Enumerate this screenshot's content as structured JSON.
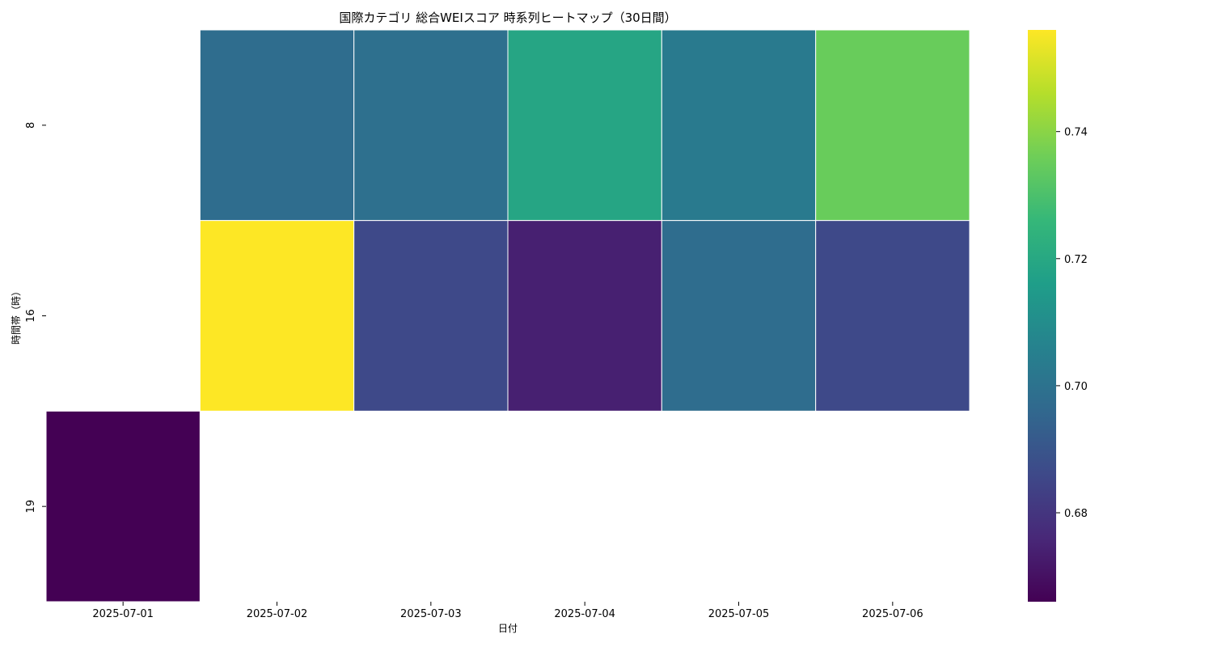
{
  "chart_data": {
    "type": "heatmap",
    "title": "国際カテゴリ 総合WEIスコア 時系列ヒートマップ（30日間）",
    "xlabel": "日付",
    "ylabel": "時間帯（時）",
    "x_categories": [
      "2025-07-01",
      "2025-07-02",
      "2025-07-03",
      "2025-07-04",
      "2025-07-05",
      "2025-07-06"
    ],
    "y_categories": [
      "8",
      "16",
      "19"
    ],
    "values": [
      [
        null,
        0.698,
        0.699,
        0.719,
        0.703,
        0.735
      ],
      [
        null,
        0.756,
        0.686,
        0.674,
        0.698,
        0.686
      ],
      [
        0.666,
        null,
        null,
        null,
        null,
        null
      ]
    ],
    "colorbar": {
      "colormap": "viridis",
      "range": [
        0.666,
        0.756
      ],
      "ticks": [
        0.68,
        0.7,
        0.72,
        0.74
      ],
      "tick_labels": [
        "0.68",
        "0.70",
        "0.72",
        "0.74"
      ]
    },
    "grid": false
  }
}
